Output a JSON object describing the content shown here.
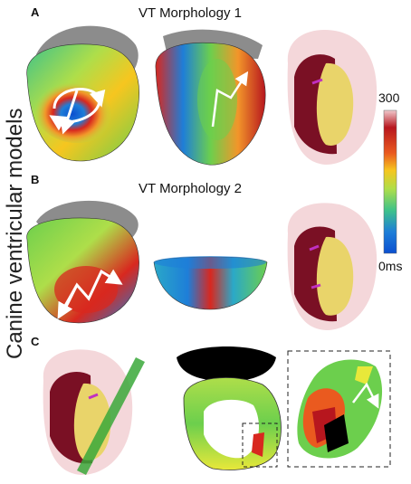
{
  "figure": {
    "side_label": "Canine ventricular models",
    "panels": [
      {
        "letter": "A",
        "title": "VT Morphology 1"
      },
      {
        "letter": "B",
        "title": "VT Morphology 2"
      },
      {
        "letter": "C",
        "title": ""
      }
    ],
    "colorbar": {
      "max_label": "300",
      "min_label": "0ms",
      "colors": [
        "#b7161e",
        "#d8281f",
        "#ea5a1f",
        "#f2962a",
        "#f6c61f",
        "#e8e83a",
        "#aede4a",
        "#6ccf4d",
        "#3ec28a",
        "#2aa8c8",
        "#1e7ed8",
        "#0b4fd0"
      ]
    },
    "colors": {
      "scar": "#7a1024",
      "core": "#e9d46a",
      "shell": "#f0c9cd",
      "gray_atria": "#8c8c8c",
      "plane": "#3aa83a",
      "purple": "#c030c0"
    }
  }
}
